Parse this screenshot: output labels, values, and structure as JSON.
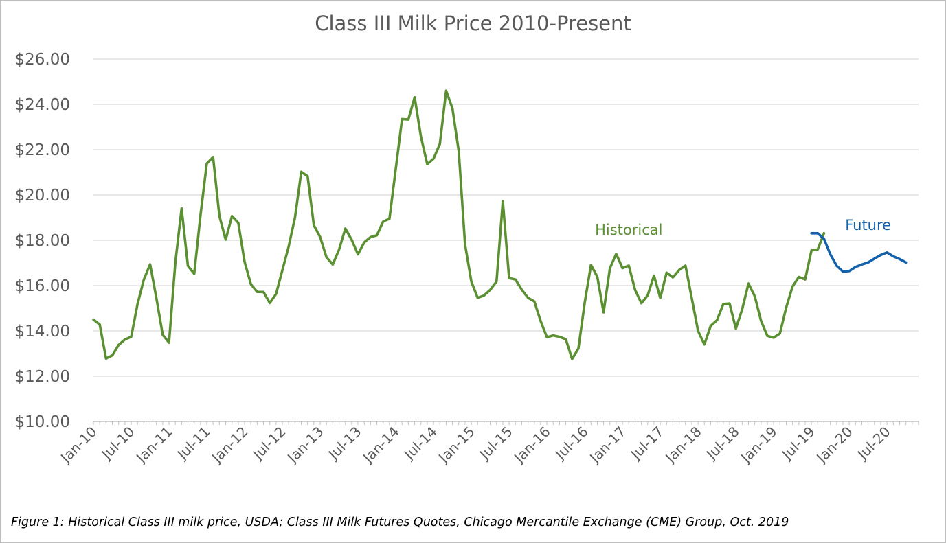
{
  "chart_data": {
    "type": "line",
    "title": "Class III Milk Price 2010-Present",
    "caption": "Figure 1: Historical Class III milk price, USDA; Class III Milk Futures Quotes, Chicago Mercantile Exchange (CME) Group, Oct. 2019",
    "ylim": [
      10,
      26
    ],
    "y_ticks": [
      "$10.00",
      "$12.00",
      "$14.00",
      "$16.00",
      "$18.00",
      "$20.00",
      "$22.00",
      "$24.00",
      "$26.00"
    ],
    "x_ticks": [
      "Jan-10",
      "Jul-10",
      "Jan-11",
      "Jul-11",
      "Jan-12",
      "Jul-12",
      "Jan-13",
      "Jul-13",
      "Jan-14",
      "Jul-14",
      "Jan-15",
      "Jul-15",
      "Jan-16",
      "Jul-16",
      "Jan-17",
      "Jul-17",
      "Jan-18",
      "Jul-18",
      "Jan-19",
      "Jul-19",
      "Jan-20",
      "Jul-20"
    ],
    "x_start": "2010-01",
    "x_end": "2020-12",
    "grid": true,
    "series": [
      {
        "name": "Historical",
        "color": "#5b9032",
        "start": "2010-01",
        "values": [
          14.5,
          14.28,
          12.78,
          12.92,
          13.38,
          13.62,
          13.74,
          15.18,
          16.26,
          16.94,
          15.44,
          13.83,
          13.48,
          17.0,
          19.4,
          16.87,
          16.52,
          19.11,
          21.39,
          21.67,
          19.07,
          18.03,
          19.07,
          18.77,
          17.05,
          16.06,
          15.72,
          15.72,
          15.23,
          15.63,
          16.68,
          17.73,
          19.0,
          21.02,
          20.83,
          18.66,
          18.14,
          17.25,
          16.93,
          17.59,
          18.52,
          18.02,
          17.38,
          17.91,
          18.14,
          18.22,
          18.83,
          18.95,
          21.15,
          23.35,
          23.33,
          24.31,
          22.57,
          21.36,
          21.6,
          22.25,
          24.6,
          23.82,
          21.94,
          17.82,
          16.18,
          15.46,
          15.56,
          15.81,
          16.18,
          19.72,
          16.33,
          16.27,
          15.82,
          15.46,
          15.3,
          14.44,
          13.72,
          13.8,
          13.74,
          13.63,
          12.76,
          13.22,
          15.24,
          16.91,
          16.39,
          14.82,
          16.76,
          17.4,
          16.77,
          16.88,
          15.81,
          15.22,
          15.57,
          16.44,
          15.45,
          16.57,
          16.36,
          16.69,
          16.88,
          15.44,
          14.0,
          13.4,
          14.22,
          14.47,
          15.18,
          15.21,
          14.1,
          14.95,
          16.09,
          15.53,
          14.44,
          13.78,
          13.7,
          13.89,
          15.04,
          15.96,
          16.38,
          16.27,
          17.55,
          17.6,
          18.31
        ]
      },
      {
        "name": "Future",
        "color": "#1461ab",
        "start": "2019-07",
        "values": [
          18.31,
          18.31,
          18.06,
          17.38,
          16.87,
          16.62,
          16.64,
          16.82,
          16.93,
          17.02,
          17.19,
          17.35,
          17.46,
          17.29,
          17.17,
          17.02
        ]
      }
    ]
  }
}
